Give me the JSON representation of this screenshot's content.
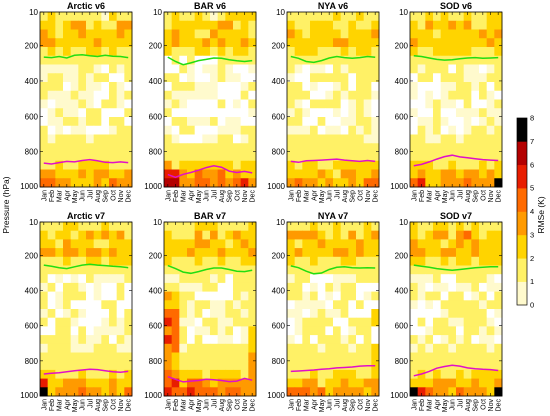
{
  "figure": {
    "ylabel": "Pressure (hPa)",
    "colorbar_label": "RMSe (K)",
    "colorbar_ticks": [
      "0",
      "1",
      "2",
      "3",
      "4",
      "5",
      "6",
      "7",
      "8"
    ]
  },
  "chart_data": {
    "type": "heatmap",
    "months": [
      "Jan",
      "Feb",
      "Mar",
      "Apr",
      "May",
      "Jun",
      "Jul",
      "Aug",
      "Sep",
      "Oct",
      "Nov",
      "Dec"
    ],
    "y_ticks": [
      10,
      200,
      400,
      600,
      800,
      1000
    ],
    "ylim": [
      1000,
      10
    ],
    "zlim": [
      0,
      8
    ],
    "colorscale": [
      "#ffffff",
      "#fffacd",
      "#fff166",
      "#ffd400",
      "#ff9a00",
      "#ff6a00",
      "#e81d00",
      "#b30000",
      "#000000"
    ],
    "panels": [
      {
        "title": "Arctic v6",
        "variant": "arctic",
        "green": [
          265,
          268,
          262,
          270,
          255,
          252,
          258,
          262,
          255,
          260,
          262,
          268
        ],
        "magenta": [
          865,
          870,
          862,
          855,
          858,
          850,
          845,
          852,
          860,
          862,
          858,
          862
        ]
      },
      {
        "title": "BAR v6",
        "variant": "bar",
        "green": [
          265,
          290,
          308,
          298,
          285,
          278,
          270,
          272,
          280,
          286,
          290,
          285
        ],
        "magenta": [
          930,
          945,
          928,
          918,
          905,
          890,
          880,
          888,
          910,
          918,
          912,
          920
        ]
      },
      {
        "title": "NYA v6",
        "variant": "nya",
        "green": [
          262,
          272,
          290,
          295,
          285,
          270,
          262,
          268,
          272,
          268,
          262,
          266
        ],
        "magenta": [
          855,
          860,
          852,
          850,
          848,
          845,
          842,
          848,
          852,
          855,
          850,
          855
        ]
      },
      {
        "title": "SOD v6",
        "variant": "sod",
        "green": [
          258,
          262,
          270,
          278,
          282,
          280,
          275,
          270,
          268,
          272,
          270,
          268
        ],
        "magenta": [
          880,
          872,
          858,
          842,
          828,
          820,
          830,
          835,
          840,
          845,
          848,
          850
        ]
      },
      {
        "title": "Arctic v7",
        "variant": "arctic",
        "green": [
          255,
          262,
          270,
          275,
          265,
          255,
          250,
          255,
          258,
          262,
          265,
          270
        ],
        "magenta": [
          875,
          870,
          868,
          862,
          856,
          852,
          848,
          850,
          856,
          862,
          865,
          860
        ]
      },
      {
        "title": "BAR v7",
        "variant": "bar",
        "green": [
          258,
          275,
          295,
          302,
          292,
          280,
          272,
          272,
          280,
          290,
          292,
          285
        ],
        "magenta": [
          890,
          905,
          920,
          915,
          912,
          905,
          908,
          912,
          918,
          915,
          900,
          910
        ]
      },
      {
        "title": "NYA v7",
        "variant": "nya",
        "green": [
          260,
          270,
          290,
          305,
          300,
          280,
          268,
          265,
          270,
          272,
          270,
          272
        ],
        "magenta": [
          860,
          858,
          855,
          852,
          848,
          845,
          840,
          838,
          835,
          830,
          828,
          828
        ]
      },
      {
        "title": "SOD v7",
        "variant": "sod",
        "green": [
          255,
          262,
          268,
          275,
          280,
          285,
          280,
          275,
          270,
          268,
          265,
          265
        ],
        "magenta": [
          885,
          875,
          860,
          842,
          832,
          825,
          830,
          840,
          845,
          848,
          850,
          855
        ]
      }
    ]
  }
}
